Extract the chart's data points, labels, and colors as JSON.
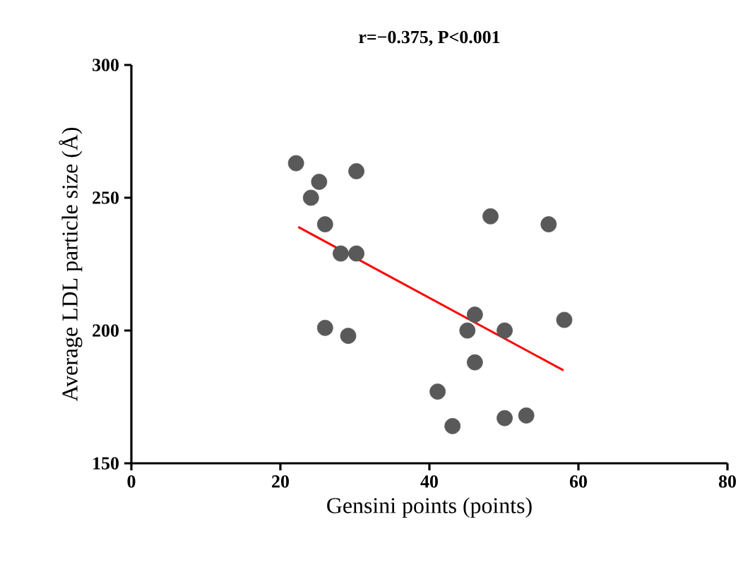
{
  "chart_data": {
    "type": "scatter",
    "title": "r=−0.375, P<0.001",
    "xlabel": "Gensini points (points)",
    "ylabel": "Average LDL particle size (Å)",
    "xlim": [
      0,
      80
    ],
    "ylim": [
      150,
      300
    ],
    "xticks": [
      0,
      20,
      40,
      60,
      80
    ],
    "yticks": [
      150,
      200,
      250,
      300
    ],
    "grid": false,
    "series": [
      {
        "marker": "circle",
        "color": "#595959",
        "x": [
          22.1,
          25.2,
          24.1,
          30.2,
          26.0,
          28.1,
          30.2,
          26.0,
          29.1,
          48.2,
          56.0,
          46.1,
          45.1,
          50.1,
          58.1,
          46.1,
          41.1,
          43.1,
          50.1,
          53.0
        ],
        "values": [
          263,
          256,
          250,
          260,
          240,
          229,
          229,
          201,
          198,
          243,
          240,
          206,
          200,
          200,
          204,
          188,
          177,
          164,
          167,
          168
        ]
      },
      {
        "type": "line",
        "marker": "none",
        "color": "#ff0000",
        "x": [
          22.4,
          58.0
        ],
        "values": [
          239,
          185
        ]
      }
    ]
  }
}
